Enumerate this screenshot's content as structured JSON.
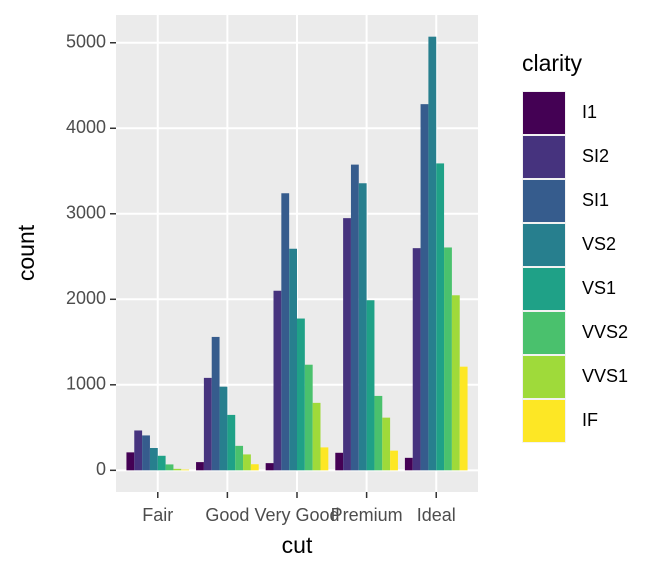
{
  "chart_data": {
    "type": "bar",
    "x_label": "cut",
    "y_label": "count",
    "legend_title": "clarity",
    "categories": [
      "Fair",
      "Good",
      "Very Good",
      "Premium",
      "Ideal"
    ],
    "series": [
      {
        "name": "I1",
        "color": "#440154",
        "values": [
          210,
          96,
          84,
          205,
          146
        ]
      },
      {
        "name": "SI2",
        "color": "#46337E",
        "values": [
          466,
          1081,
          2100,
          2949,
          2598
        ]
      },
      {
        "name": "SI1",
        "color": "#365C8D",
        "values": [
          408,
          1560,
          3240,
          3575,
          4282
        ]
      },
      {
        "name": "VS2",
        "color": "#277F8E",
        "values": [
          261,
          978,
          2591,
          3357,
          5071
        ]
      },
      {
        "name": "VS1",
        "color": "#1FA187",
        "values": [
          170,
          648,
          1775,
          1989,
          3589
        ]
      },
      {
        "name": "VVS2",
        "color": "#4AC16D",
        "values": [
          69,
          286,
          1235,
          870,
          2606
        ]
      },
      {
        "name": "VVS1",
        "color": "#9FDA3A",
        "values": [
          17,
          186,
          789,
          616,
          2047
        ]
      },
      {
        "name": "IF",
        "color": "#FDE725",
        "values": [
          9,
          71,
          268,
          230,
          1212
        ]
      }
    ],
    "ylim": [
      -253.55,
      5324.55
    ],
    "yticks": [
      0,
      1000,
      2000,
      3000,
      4000,
      5000
    ],
    "grid": true,
    "panel_color": "#EBEBEB",
    "legend_position": "right"
  }
}
